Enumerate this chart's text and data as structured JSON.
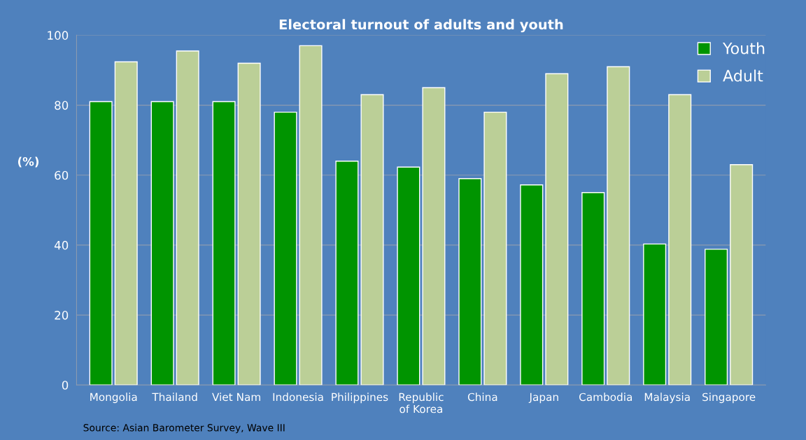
{
  "chart_data": {
    "type": "bar",
    "title": "Electoral turnout of adults and youth",
    "ylabel": "(%)",
    "categories": [
      "Mongolia",
      "Thailand",
      "Viet Nam",
      "Indonesia",
      "Philippines",
      "Republic\nof Korea",
      "China",
      "Japan",
      "Cambodia",
      "Malaysia",
      "Singapore"
    ],
    "series": [
      {
        "name": "Youth",
        "color": "#009400",
        "values": [
          81,
          81,
          81,
          78,
          64,
          62.3,
          59,
          57.2,
          55,
          40.3,
          38.8
        ]
      },
      {
        "name": "Adult",
        "color": "#bbcf97",
        "values": [
          92.4,
          95.5,
          92,
          97,
          83,
          85,
          78,
          89,
          91,
          83,
          63
        ]
      }
    ],
    "ylim": [
      0,
      100
    ],
    "yticks": [
      0,
      20,
      40,
      60,
      80,
      100
    ],
    "grid": "y",
    "legend": "top right",
    "annotations": [
      "Source: Asian Barometer Survey, Wave III"
    ]
  }
}
